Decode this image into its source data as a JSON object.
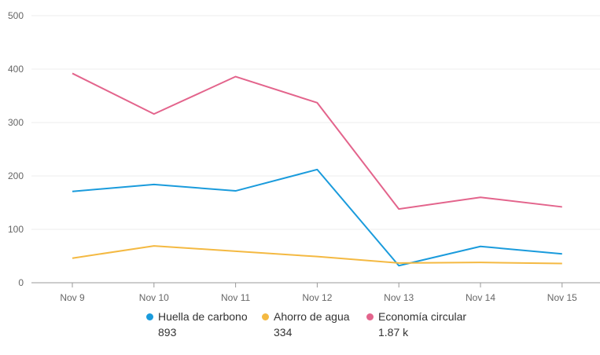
{
  "chart_data": {
    "type": "line",
    "categories": [
      "Nov 9",
      "Nov 10",
      "Nov 11",
      "Nov 12",
      "Nov 13",
      "Nov 14",
      "Nov 15"
    ],
    "ylim": [
      0,
      500
    ],
    "yticks": [
      "0",
      "100",
      "200",
      "300",
      "400",
      "500"
    ],
    "grid": true,
    "legend_position": "bottom",
    "series": [
      {
        "name": "Huella de carbono",
        "total": "893",
        "color": "#1a9bdc",
        "values": [
          171,
          184,
          172,
          212,
          32,
          68,
          54
        ]
      },
      {
        "name": "Ahorro de agua",
        "total": "334",
        "color": "#f4b942",
        "values": [
          46,
          69,
          59,
          49,
          37,
          38,
          36
        ]
      },
      {
        "name": "Economía circular",
        "total": "1.87 k",
        "color": "#e3648c",
        "values": [
          392,
          316,
          386,
          337,
          138,
          160,
          142
        ]
      }
    ]
  }
}
